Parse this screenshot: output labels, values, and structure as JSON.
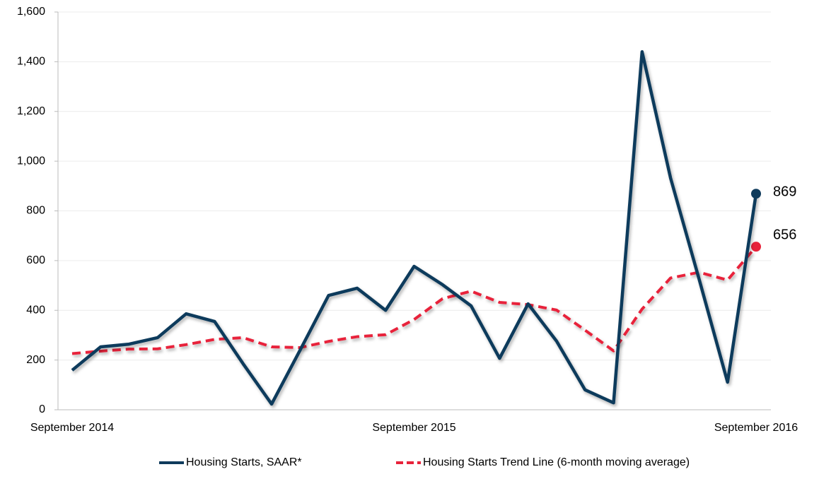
{
  "chart_data": {
    "type": "line",
    "categories": [
      "September 2014",
      null,
      null,
      null,
      null,
      null,
      null,
      null,
      null,
      null,
      null,
      null,
      "September 2015",
      null,
      null,
      null,
      null,
      null,
      null,
      null,
      null,
      null,
      null,
      null,
      "September 2016"
    ],
    "series": [
      {
        "name": "Housing Starts, SAAR*",
        "color": "#0f3b5c",
        "dash": false,
        "values": [
          159,
          253,
          264,
          290,
          386,
          355,
          185,
          23,
          240,
          460,
          489,
          400,
          577,
          503,
          418,
          207,
          426,
          276,
          80,
          28,
          1440,
          932,
          526,
          111,
          869
        ]
      },
      {
        "name": "Housing Starts Trend Line (6-month moving average)",
        "color": "#e8223a",
        "dash": true,
        "values": [
          226,
          236,
          244,
          245,
          262,
          283,
          290,
          253,
          250,
          275,
          294,
          302,
          363,
          447,
          477,
          432,
          423,
          401,
          320,
          237,
          405,
          530,
          553,
          522,
          656
        ]
      }
    ],
    "ylim": [
      0,
      1600
    ],
    "yticks": [
      0,
      {
        "value": 200,
        "label": "200"
      },
      400,
      600,
      800,
      {
        "value": 1000,
        "label": "1,000"
      },
      {
        "value": 1200,
        "label": "1,200"
      },
      {
        "value": 1400,
        "label": "1,400"
      },
      {
        "value": 1600,
        "label": "1,600"
      }
    ],
    "grid": true
  }
}
